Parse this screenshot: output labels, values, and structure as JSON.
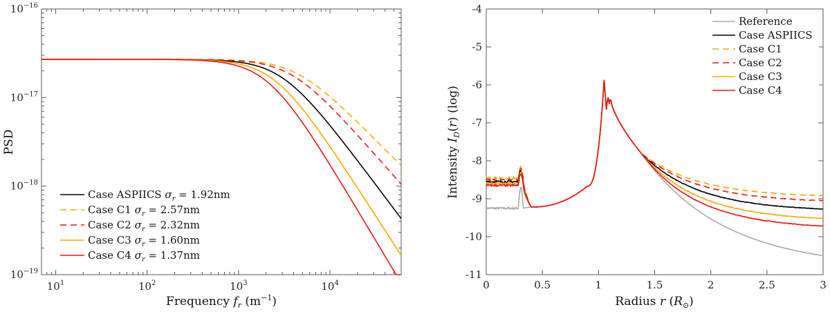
{
  "chart_data": [
    {
      "type": "line",
      "title": "",
      "xlabel": "Frequency f_r (m^-1)",
      "ylabel": "PSD",
      "xscale": "log",
      "yscale": "log",
      "xlim": [
        7,
        60000
      ],
      "ylim": [
        1e-19,
        1e-16
      ],
      "x_ticks": [
        10,
        100,
        1000,
        10000
      ],
      "x_tick_labels": [
        "10^1",
        "10^2",
        "10^3",
        "10^4"
      ],
      "y_ticks": [
        1e-19,
        1e-18,
        1e-17,
        1e-16
      ],
      "y_tick_labels": [
        "10^-19",
        "10^-18",
        "10^-17",
        "10^-16"
      ],
      "legend_position": "bottom-left",
      "series": [
        {
          "name": "Case ASPIICS",
          "sigma": "σr = 1.92nm",
          "color": "#000000",
          "dash": "solid",
          "plateau": 2.7e-17,
          "knee": 3000,
          "end_value": 4.3e-19
        },
        {
          "name": "Case C1",
          "sigma": "σr = 2.57nm",
          "color": "#f5a800",
          "dash": "dashed",
          "plateau": 2.7e-17,
          "knee": 4300,
          "end_value": 1.7e-18
        },
        {
          "name": "Case C2",
          "sigma": "σr = 2.32nm",
          "color": "#e8161b",
          "dash": "dashed",
          "plateau": 2.7e-17,
          "knee": 3800,
          "end_value": 1.05e-18
        },
        {
          "name": "Case C3",
          "sigma": "σr = 1.60nm",
          "color": "#f5a800",
          "dash": "solid",
          "plateau": 2.7e-17,
          "knee": 2500,
          "end_value": 1.65e-19
        },
        {
          "name": "Case C4",
          "sigma": "σr = 1.37nm",
          "color": "#e8161b",
          "dash": "solid",
          "plateau": 2.7e-17,
          "knee": 2100,
          "end_value": 8e-20
        }
      ]
    },
    {
      "type": "line",
      "title": "",
      "xlabel": "Radius r (R⊙)",
      "ylabel": "Intensity I_D(r) (log)",
      "xlim": [
        0,
        3
      ],
      "ylim": [
        -11,
        -4
      ],
      "x_ticks": [
        0,
        0.5,
        1,
        1.5,
        2,
        2.5,
        3
      ],
      "x_tick_labels": [
        "0",
        "0.5",
        "1",
        "1.5",
        "2",
        "2.5",
        "3"
      ],
      "y_ticks": [
        -11,
        -10,
        -9,
        -8,
        -7,
        -6,
        -5,
        -4
      ],
      "y_tick_labels": [
        "-11",
        "-10",
        "-9",
        "-8",
        "-7",
        "-6",
        "-5",
        "-4"
      ],
      "legend_position": "top-right",
      "series": [
        {
          "name": "Reference",
          "color": "#a8a8a8",
          "dash": "solid",
          "inner_level": -9.25,
          "tail_value": -10.5
        },
        {
          "name": "Case ASPIICS",
          "color": "#000000",
          "dash": "solid",
          "inner_level": -8.55,
          "tail_value": -9.27
        },
        {
          "name": "Case C1",
          "color": "#f5a800",
          "dash": "dashed",
          "inner_level": -8.45,
          "tail_value": -8.92
        },
        {
          "name": "Case C2",
          "color": "#e8161b",
          "dash": "dashed",
          "inner_level": -8.5,
          "tail_value": -9.05
        },
        {
          "name": "Case C3",
          "color": "#f5a800",
          "dash": "solid",
          "inner_level": -8.6,
          "tail_value": -9.52
        },
        {
          "name": "Case C4",
          "color": "#e8161b",
          "dash": "solid",
          "inner_level": -8.65,
          "tail_value": -9.72
        }
      ]
    }
  ]
}
